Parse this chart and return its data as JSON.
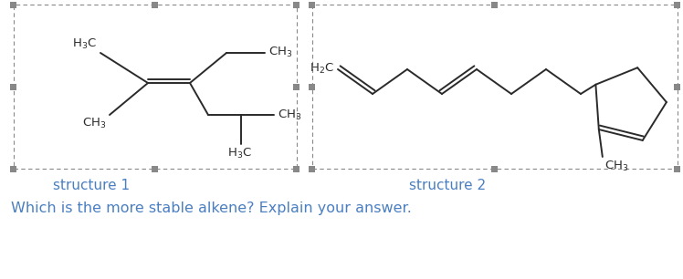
{
  "background_color": "#ffffff",
  "line_color": "#2a2a2a",
  "label_color": "#4a7fc1",
  "structure1_label": "structure 1",
  "structure2_label": "structure 2",
  "question_text": "Which is the more stable alkene? Explain your answer.",
  "fig_width": 7.48,
  "fig_height": 3.06,
  "dpi": 100
}
